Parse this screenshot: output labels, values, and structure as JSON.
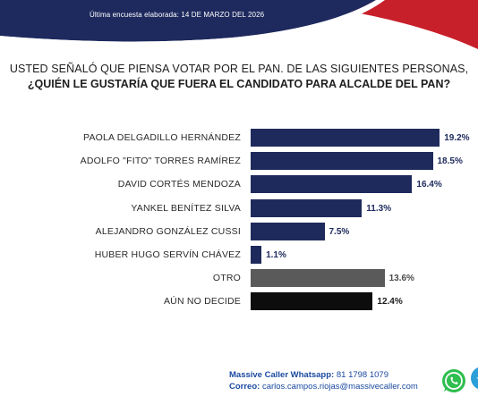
{
  "header": {
    "text": "Última encuesta elaborada: 14 DE MARZO DEL 2026",
    "colors": {
      "navy": "#1e2a5e",
      "red": "#c8202a"
    }
  },
  "question": {
    "line1": "USTED SEÑALÓ QUE PIENSA VOTAR POR EL PAN. DE LAS SIGUIENTES PERSONAS,",
    "line2": "¿QUIÉN LE GUSTARÍA QUE FUERA EL CANDIDATO PARA ALCALDE DEL PAN?"
  },
  "chart_data": {
    "type": "bar",
    "orientation": "horizontal",
    "categories": [
      "PAOLA DELGADILLO HERNÁNDEZ",
      "ADOLFO \"FITO\" TORRES RAMÍREZ",
      "DAVID CORTÉS MENDOZA",
      "YANKEL BENÍTEZ SILVA",
      "ALEJANDRO GONZÁLEZ CUSSI",
      "HUBER HUGO SERVÍN CHÁVEZ",
      "OTRO",
      "AÚN NO DECIDE"
    ],
    "values": [
      19.2,
      18.5,
      16.4,
      11.3,
      7.5,
      1.1,
      13.6,
      12.4
    ],
    "value_labels": [
      "19.2%",
      "18.5%",
      "16.4%",
      "11.3%",
      "7.5%",
      "1.1%",
      "13.6%",
      "12.4%"
    ],
    "bar_colors": [
      "#1f2a5c",
      "#1f2a5c",
      "#1f2a5c",
      "#1f2a5c",
      "#1f2a5c",
      "#1f2a5c",
      "#5a5a5a",
      "#0d0d0d"
    ],
    "xlim": [
      0,
      20
    ],
    "grid": false,
    "legend": "none"
  },
  "footer": {
    "whatsapp_label": "Massive Caller Whatsapp:",
    "whatsapp_number": "81 1798 1079",
    "email_label": "Correo:",
    "email": "carlos.campos.riojas@massivecaller.com"
  },
  "icons": {
    "whatsapp": "whatsapp-icon",
    "telegram": "telegram-icon"
  }
}
